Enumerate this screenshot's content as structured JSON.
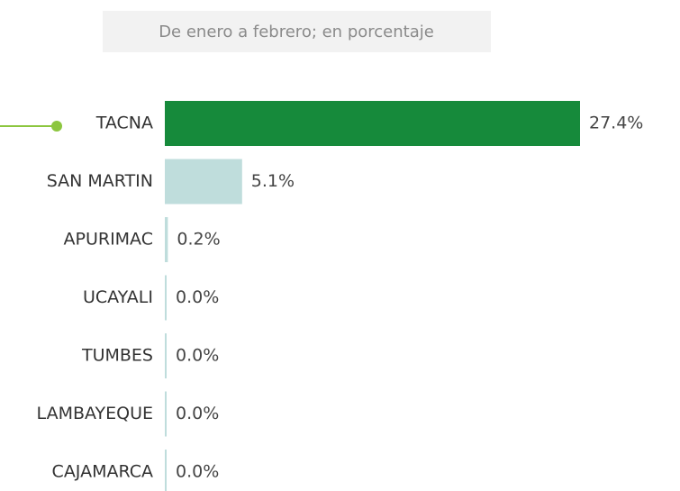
{
  "chart_data": {
    "type": "bar",
    "orientation": "horizontal",
    "subtitle": "De enero a febrero; en porcentaje",
    "categories": [
      "TACNA",
      "SAN MARTIN",
      "APURIMAC",
      "UCAYALI",
      "TUMBES",
      "LAMBAYEQUE",
      "CAJAMARCA"
    ],
    "values": [
      27.4,
      5.1,
      0.2,
      0.0,
      0.0,
      0.0,
      0.0
    ],
    "value_labels": [
      "27.4%",
      "5.1%",
      "0.2%",
      "0.0%",
      "0.0%",
      "0.0%",
      "0.0%"
    ],
    "colors": [
      "#168a3b",
      "#bfdddc",
      "#bfdddc",
      "#bfdddc",
      "#bfdddc",
      "#bfdddc",
      "#bfdddc"
    ]
  }
}
